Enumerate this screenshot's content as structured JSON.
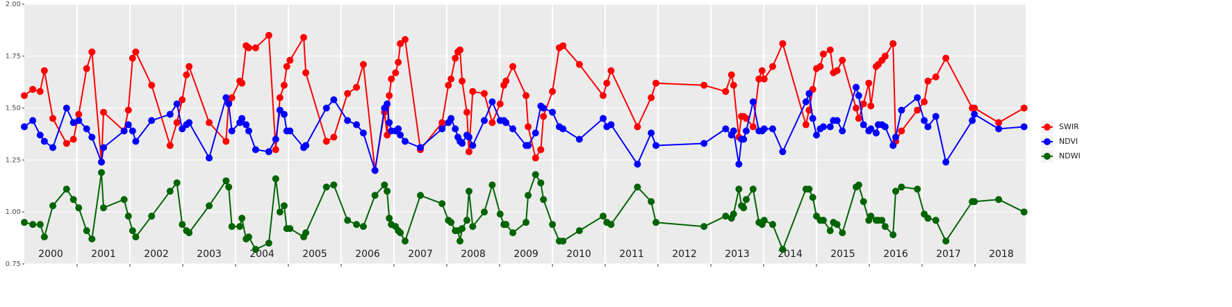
{
  "chart_data": {
    "type": "line",
    "xlim": [
      2000,
      2018.96
    ],
    "ylim": [
      0.75,
      2.0
    ],
    "yticks": [
      {
        "value": 0.75,
        "label": "0.75"
      },
      {
        "value": 1.0,
        "label": "1.00"
      },
      {
        "value": 1.25,
        "label": "1.25"
      },
      {
        "value": 1.5,
        "label": "1.50"
      },
      {
        "value": 1.75,
        "label": "1.75"
      },
      {
        "value": 2.0,
        "label": "2.00"
      }
    ],
    "xticks": [
      {
        "value": 2000.5,
        "label": "2000"
      },
      {
        "value": 2001.5,
        "label": "2001"
      },
      {
        "value": 2002.5,
        "label": "2002"
      },
      {
        "value": 2003.5,
        "label": "2003"
      },
      {
        "value": 2004.5,
        "label": "2004"
      },
      {
        "value": 2005.5,
        "label": "2005"
      },
      {
        "value": 2006.5,
        "label": "2006"
      },
      {
        "value": 2007.5,
        "label": "2007"
      },
      {
        "value": 2008.5,
        "label": "2008"
      },
      {
        "value": 2009.5,
        "label": "2009"
      },
      {
        "value": 2010.5,
        "label": "2010"
      },
      {
        "value": 2011.5,
        "label": "2011"
      },
      {
        "value": 2012.5,
        "label": "2012"
      },
      {
        "value": 2013.5,
        "label": "2013"
      },
      {
        "value": 2014.5,
        "label": "2014"
      },
      {
        "value": 2015.5,
        "label": "2015"
      },
      {
        "value": 2016.5,
        "label": "2016"
      },
      {
        "value": 2017.5,
        "label": "2017"
      },
      {
        "value": 2018.5,
        "label": "2018"
      }
    ],
    "xgrid": [
      2001,
      2002,
      2003,
      2004,
      2005,
      2006,
      2007,
      2008,
      2009,
      2010,
      2011,
      2012,
      2013,
      2014,
      2015,
      2016,
      2017,
      2018
    ],
    "grid": true,
    "legend": "right",
    "x": [
      2000.0,
      2000.16,
      2000.3,
      2000.38,
      2000.54,
      2000.8,
      2000.93,
      2001.03,
      2001.18,
      2001.28,
      2001.46,
      2001.5,
      2001.89,
      2001.97,
      2002.05,
      2002.11,
      2002.41,
      2002.76,
      2002.89,
      2002.99,
      2003.07,
      2003.12,
      2003.5,
      2003.82,
      2003.87,
      2003.93,
      2004.08,
      2004.12,
      2004.2,
      2004.25,
      2004.38,
      2004.63,
      2004.76,
      2004.84,
      2004.92,
      2004.97,
      2005.03,
      2005.29,
      2005.33,
      2005.72,
      2005.86,
      2006.12,
      2006.29,
      2006.42,
      2006.64,
      2006.82,
      2006.87,
      2006.91,
      2006.95,
      2007.03,
      2007.08,
      2007.12,
      2007.21,
      2007.5,
      2007.91,
      2008.03,
      2008.08,
      2008.16,
      2008.21,
      2008.25,
      2008.29,
      2008.38,
      2008.42,
      2008.49,
      2008.71,
      2008.86,
      2009.01,
      2009.08,
      2009.12,
      2009.25,
      2009.5,
      2009.54,
      2009.68,
      2009.78,
      2009.83,
      2010.0,
      2010.13,
      2010.2,
      2010.51,
      2010.96,
      2011.03,
      2011.11,
      2011.61,
      2011.87,
      2011.96,
      2012.87,
      2013.28,
      2013.39,
      2013.43,
      2013.53,
      2013.58,
      2013.62,
      2013.67,
      2013.8,
      2013.91,
      2013.97,
      2014.01,
      2014.17,
      2014.36,
      2014.8,
      2014.86,
      2014.93,
      2015.0,
      2015.07,
      2015.13,
      2015.26,
      2015.32,
      2015.39,
      2015.49,
      2015.75,
      2015.8,
      2015.89,
      2015.99,
      2016.03,
      2016.13,
      2016.17,
      2016.24,
      2016.3,
      2016.45,
      2016.5,
      2016.61,
      2016.91,
      2017.04,
      2017.11,
      2017.26,
      2017.45,
      2017.95,
      2017.99,
      2018.45,
      2018.93
    ],
    "series": [
      {
        "name": "SWIR",
        "color": "#ff0000",
        "values": [
          1.56,
          1.59,
          1.58,
          1.68,
          1.45,
          1.33,
          1.35,
          1.47,
          1.69,
          1.77,
          1.24,
          1.48,
          1.39,
          1.49,
          1.74,
          1.77,
          1.61,
          1.32,
          1.43,
          1.54,
          1.66,
          1.7,
          1.43,
          1.34,
          1.53,
          1.55,
          1.63,
          1.62,
          1.8,
          1.79,
          1.79,
          1.85,
          1.3,
          1.55,
          1.61,
          1.7,
          1.73,
          1.84,
          1.67,
          1.34,
          1.36,
          1.57,
          1.6,
          1.71,
          1.2,
          1.48,
          1.37,
          1.56,
          1.64,
          1.67,
          1.72,
          1.81,
          1.83,
          1.3,
          1.43,
          1.61,
          1.64,
          1.74,
          1.77,
          1.78,
          1.63,
          1.48,
          1.29,
          1.58,
          1.57,
          1.43,
          1.52,
          1.61,
          1.63,
          1.7,
          1.56,
          1.41,
          1.26,
          1.3,
          1.46,
          1.58,
          1.79,
          1.8,
          1.71,
          1.56,
          1.62,
          1.68,
          1.41,
          1.55,
          1.62,
          1.61,
          1.58,
          1.66,
          1.61,
          1.36,
          1.46,
          1.46,
          1.45,
          1.41,
          1.64,
          1.68,
          1.64,
          1.7,
          1.81,
          1.42,
          1.49,
          1.59,
          1.69,
          1.7,
          1.76,
          1.78,
          1.67,
          1.68,
          1.73,
          1.5,
          1.45,
          1.52,
          1.62,
          1.51,
          1.7,
          1.71,
          1.73,
          1.75,
          1.81,
          1.34,
          1.39,
          1.49,
          1.53,
          1.63,
          1.65,
          1.74,
          1.5,
          1.5,
          1.43,
          1.5
        ]
      },
      {
        "name": "NDVI",
        "color": "#0000ff",
        "values": [
          1.41,
          1.44,
          1.37,
          1.34,
          1.31,
          1.5,
          1.43,
          1.44,
          1.4,
          1.36,
          1.24,
          1.31,
          1.39,
          1.42,
          1.39,
          1.34,
          1.44,
          1.47,
          1.52,
          1.4,
          1.42,
          1.43,
          1.26,
          1.55,
          1.52,
          1.39,
          1.43,
          1.45,
          1.42,
          1.39,
          1.3,
          1.29,
          1.35,
          1.49,
          1.47,
          1.39,
          1.39,
          1.31,
          1.32,
          1.5,
          1.54,
          1.44,
          1.42,
          1.38,
          1.2,
          1.5,
          1.52,
          1.43,
          1.39,
          1.39,
          1.4,
          1.37,
          1.34,
          1.31,
          1.4,
          1.43,
          1.45,
          1.4,
          1.36,
          1.34,
          1.33,
          1.37,
          1.36,
          1.32,
          1.44,
          1.53,
          1.44,
          1.44,
          1.43,
          1.4,
          1.32,
          1.32,
          1.38,
          1.51,
          1.5,
          1.48,
          1.41,
          1.4,
          1.35,
          1.45,
          1.41,
          1.42,
          1.23,
          1.38,
          1.32,
          1.33,
          1.4,
          1.37,
          1.39,
          1.23,
          1.35,
          1.35,
          1.39,
          1.53,
          1.39,
          1.39,
          1.4,
          1.4,
          1.29,
          1.53,
          1.57,
          1.45,
          1.37,
          1.4,
          1.41,
          1.41,
          1.44,
          1.44,
          1.39,
          1.6,
          1.56,
          1.42,
          1.39,
          1.4,
          1.38,
          1.42,
          1.42,
          1.41,
          1.32,
          1.36,
          1.49,
          1.55,
          1.44,
          1.41,
          1.46,
          1.24,
          1.44,
          1.47,
          1.4,
          1.41
        ]
      },
      {
        "name": "NDWI",
        "color": "#006400",
        "values": [
          0.95,
          0.94,
          0.94,
          0.88,
          1.03,
          1.11,
          1.06,
          1.02,
          0.91,
          0.87,
          1.19,
          1.02,
          1.06,
          0.98,
          0.91,
          0.88,
          0.98,
          1.1,
          1.14,
          0.94,
          0.91,
          0.9,
          1.03,
          1.15,
          1.12,
          0.93,
          0.93,
          0.97,
          0.87,
          0.88,
          0.82,
          0.85,
          1.16,
          1.0,
          1.03,
          0.92,
          0.92,
          0.88,
          0.9,
          1.12,
          1.13,
          0.96,
          0.94,
          0.93,
          1.08,
          1.13,
          1.1,
          0.97,
          0.94,
          0.93,
          0.91,
          0.9,
          0.86,
          1.08,
          1.04,
          0.96,
          0.95,
          0.91,
          0.91,
          0.86,
          0.92,
          0.96,
          1.1,
          0.93,
          1.0,
          1.13,
          0.99,
          0.94,
          0.94,
          0.9,
          0.95,
          1.08,
          1.18,
          1.14,
          1.06,
          0.94,
          0.86,
          0.86,
          0.91,
          0.98,
          0.95,
          0.94,
          1.12,
          1.05,
          0.95,
          0.93,
          0.98,
          0.97,
          0.99,
          1.11,
          1.03,
          1.02,
          1.06,
          1.11,
          0.95,
          0.94,
          0.96,
          0.94,
          0.82,
          1.11,
          1.11,
          1.07,
          0.98,
          0.96,
          0.96,
          0.91,
          0.95,
          0.94,
          0.9,
          1.12,
          1.13,
          1.05,
          0.96,
          0.98,
          0.96,
          0.96,
          0.96,
          0.93,
          0.89,
          1.1,
          1.12,
          1.11,
          0.99,
          0.97,
          0.96,
          0.86,
          1.05,
          1.05,
          1.06,
          1.0
        ]
      }
    ]
  }
}
